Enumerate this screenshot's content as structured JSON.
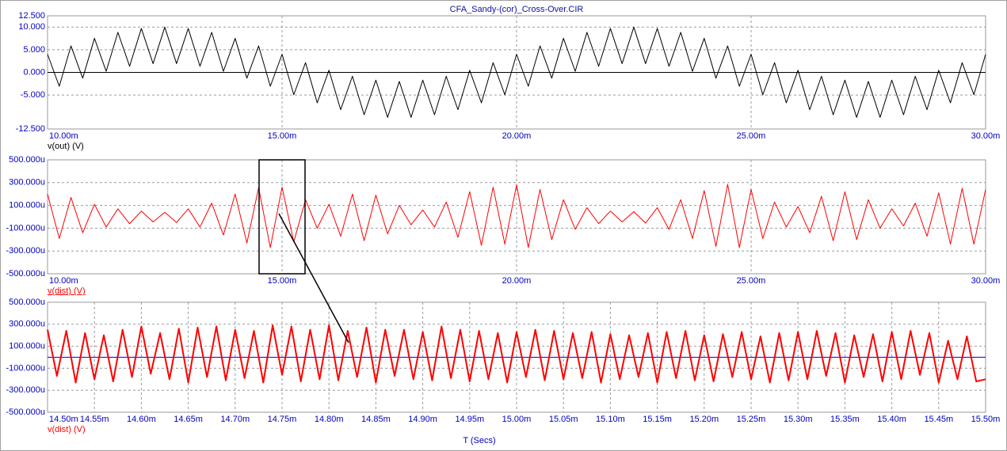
{
  "chart_data": [
    {
      "type": "line",
      "title": "CFA_Sandy-(cor)_Cross-Over.CIR",
      "grid": true,
      "zero_line_color": "#000000",
      "xlim": [
        0.01,
        0.03
      ],
      "xticks": [
        {
          "value": 0.01,
          "label": "10.00m"
        },
        {
          "value": 0.015,
          "label": "15.00m"
        },
        {
          "value": 0.02,
          "label": "20.00m"
        },
        {
          "value": 0.025,
          "label": "25.00m"
        },
        {
          "value": 0.03,
          "label": "30.00m"
        }
      ],
      "ylim": [
        -12.5,
        12.5
      ],
      "yticks": [
        {
          "value": 12.5,
          "label": "12.500"
        },
        {
          "value": 10,
          "label": "10.000"
        },
        {
          "value": 5,
          "label": "5.000"
        },
        {
          "value": 0,
          "label": "0.000"
        },
        {
          "value": -5,
          "label": "-5.000"
        },
        {
          "value": -12.5,
          "label": "-12.500"
        }
      ],
      "x": [
        0.01,
        0.01025,
        0.0105,
        0.01075,
        0.011,
        0.01125,
        0.0115,
        0.01175,
        0.012,
        0.01225,
        0.0125,
        0.01275,
        0.013,
        0.01325,
        0.0135,
        0.01375,
        0.014,
        0.01425,
        0.0145,
        0.01475,
        0.015,
        0.01525,
        0.0155,
        0.01575,
        0.016,
        0.01625,
        0.0165,
        0.01675,
        0.017,
        0.01725,
        0.0175,
        0.01775,
        0.018,
        0.01825,
        0.0185,
        0.01875,
        0.019,
        0.01925,
        0.0195,
        0.01975,
        0.02,
        0.02025,
        0.0205,
        0.02075,
        0.021,
        0.02125,
        0.0215,
        0.02175,
        0.022,
        0.02225,
        0.0225,
        0.02275,
        0.023,
        0.02325,
        0.0235,
        0.02375,
        0.024,
        0.02425,
        0.0245,
        0.02475,
        0.025,
        0.02525,
        0.0255,
        0.02575,
        0.026,
        0.02625,
        0.0265,
        0.02675,
        0.027,
        0.02725,
        0.0275,
        0.02775,
        0.028,
        0.02825,
        0.0285,
        0.02875,
        0.029,
        0.02925,
        0.0295,
        0.02975,
        0.03
      ],
      "series": [
        {
          "name": "v(out) (V)",
          "color": "#000000",
          "values": [
            4,
            -3.06,
            5.85,
            -1.28,
            7.53,
            0.24,
            8.85,
            1.35,
            9.71,
            1.93,
            10,
            1.93,
            9.71,
            1.35,
            8.85,
            0.24,
            7.53,
            -1.28,
            5.85,
            -3.06,
            4,
            -4.94,
            2.15,
            -6.72,
            0.47,
            -8.24,
            -0.85,
            -9.35,
            -1.71,
            -9.93,
            -2,
            -9.93,
            -1.71,
            -9.35,
            -0.85,
            -8.24,
            0.47,
            -6.72,
            2.15,
            -4.94,
            4,
            -3.06,
            5.85,
            -1.28,
            7.53,
            0.24,
            8.85,
            1.35,
            9.71,
            1.93,
            10,
            1.93,
            9.71,
            1.35,
            8.85,
            0.24,
            7.53,
            -1.28,
            5.85,
            -3.06,
            4,
            -4.94,
            2.15,
            -6.72,
            0.47,
            -8.24,
            -0.85,
            -9.35,
            -1.71,
            -9.93,
            -2,
            -9.93,
            -1.71,
            -9.35,
            -0.85,
            -8.24,
            0.47,
            -6.72,
            2.15,
            -4.94,
            4
          ]
        }
      ]
    },
    {
      "type": "line",
      "grid": true,
      "underline_legend": true,
      "xlim": [
        0.01,
        0.03
      ],
      "xticks": [
        {
          "value": 0.01,
          "label": "10.00m"
        },
        {
          "value": 0.015,
          "label": "15.00m"
        },
        {
          "value": 0.02,
          "label": "20.00m"
        },
        {
          "value": 0.025,
          "label": "25.00m"
        },
        {
          "value": 0.03,
          "label": "30.00m"
        }
      ],
      "ylim": [
        -0.0005,
        0.0005
      ],
      "yticks": [
        {
          "value": 0.0005,
          "label": "500.000u"
        },
        {
          "value": 0.0003,
          "label": "300.000u"
        },
        {
          "value": 0.0001,
          "label": "100.000u"
        },
        {
          "value": -0.0001,
          "label": "-100.000u"
        },
        {
          "value": -0.0003,
          "label": "-300.000u"
        },
        {
          "value": -0.0005,
          "label": "-500.000u"
        }
      ],
      "x": [
        0.01,
        0.01025,
        0.0105,
        0.01075,
        0.011,
        0.01125,
        0.0115,
        0.01175,
        0.012,
        0.01225,
        0.0125,
        0.01275,
        0.013,
        0.01325,
        0.0135,
        0.01375,
        0.014,
        0.01425,
        0.0145,
        0.01475,
        0.015,
        0.01525,
        0.0155,
        0.01575,
        0.016,
        0.01625,
        0.0165,
        0.01675,
        0.017,
        0.01725,
        0.0175,
        0.01775,
        0.018,
        0.01825,
        0.0185,
        0.01875,
        0.019,
        0.01925,
        0.0195,
        0.01975,
        0.02,
        0.02025,
        0.0205,
        0.02075,
        0.021,
        0.02125,
        0.0215,
        0.02175,
        0.022,
        0.02225,
        0.0225,
        0.02275,
        0.023,
        0.02325,
        0.0235,
        0.02375,
        0.024,
        0.02425,
        0.0245,
        0.02475,
        0.025,
        0.02525,
        0.0255,
        0.02575,
        0.026,
        0.02625,
        0.0265,
        0.02675,
        0.027,
        0.02725,
        0.0275,
        0.02775,
        0.028,
        0.02825,
        0.0285,
        0.02875,
        0.029,
        0.02925,
        0.0295,
        0.02975,
        0.03
      ],
      "series": [
        {
          "name": "v(dist) (V)",
          "color": "#ff0000",
          "values": [
            0.0002,
            -0.00019,
            0.00017,
            -0.00014,
            0.00011,
            -9e-05,
            7e-05,
            -6e-05,
            5e-05,
            -4.5e-05,
            4e-05,
            -5e-05,
            7e-05,
            -9e-05,
            0.00012,
            -0.00016,
            0.0002,
            -0.00023,
            0.000255,
            -0.00027,
            0.00026,
            -0.00022,
            0.00015,
            -0.0001,
            0.00011,
            -0.00017,
            0.0002,
            -0.00021,
            0.00019,
            -0.00015,
            0.0001,
            -7e-05,
            6e-05,
            -9e-05,
            0.00013,
            -0.00018,
            0.00022,
            -0.00025,
            0.00026,
            -0.00024,
            0.00028,
            -0.00027,
            0.00024,
            -0.0002,
            0.00015,
            -0.00011,
            8e-05,
            -6e-05,
            5e-05,
            -4.5e-05,
            4.5e-05,
            -5.5e-05,
            8e-05,
            -0.00011,
            0.00015,
            -0.00019,
            0.00023,
            -0.00026,
            0.000285,
            -0.00027,
            0.00024,
            -0.00019,
            0.00013,
            -9e-05,
            9e-05,
            -0.00014,
            0.00018,
            -0.00021,
            0.00022,
            -0.0002,
            0.00015,
            -0.0001,
            7e-05,
            -8e-05,
            0.00012,
            -0.00017,
            0.00021,
            -0.00024,
            0.00025,
            -0.00024,
            0.00024
          ]
        }
      ]
    },
    {
      "type": "line",
      "grid": true,
      "zero_line_color": "#0000ff",
      "xlabel": "T (Secs)",
      "xlim": [
        0.0145,
        0.0155
      ],
      "xticks": [
        {
          "value": 0.0145,
          "label": "14.50m"
        },
        {
          "value": 0.01455,
          "label": "14.55m"
        },
        {
          "value": 0.0146,
          "label": "14.60m"
        },
        {
          "value": 0.01465,
          "label": "14.65m"
        },
        {
          "value": 0.0147,
          "label": "14.70m"
        },
        {
          "value": 0.01475,
          "label": "14.75m"
        },
        {
          "value": 0.0148,
          "label": "14.80m"
        },
        {
          "value": 0.01485,
          "label": "14.85m"
        },
        {
          "value": 0.0149,
          "label": "14.90m"
        },
        {
          "value": 0.01495,
          "label": "14.95m"
        },
        {
          "value": 0.015,
          "label": "15.00m"
        },
        {
          "value": 0.01505,
          "label": "15.05m"
        },
        {
          "value": 0.0151,
          "label": "15.10m"
        },
        {
          "value": 0.01515,
          "label": "15.15m"
        },
        {
          "value": 0.0152,
          "label": "15.20m"
        },
        {
          "value": 0.01525,
          "label": "15.25m"
        },
        {
          "value": 0.0153,
          "label": "15.30m"
        },
        {
          "value": 0.01535,
          "label": "15.35m"
        },
        {
          "value": 0.0154,
          "label": "15.40m"
        },
        {
          "value": 0.01545,
          "label": "15.45m"
        },
        {
          "value": 0.0155,
          "label": "15.50m"
        }
      ],
      "ylim": [
        -0.0005,
        0.0005
      ],
      "yticks": [
        {
          "value": 0.0005,
          "label": "500.000u"
        },
        {
          "value": 0.0003,
          "label": "300.000u"
        },
        {
          "value": 0.0001,
          "label": "100.000u"
        },
        {
          "value": -0.0001,
          "label": "-100.000u"
        },
        {
          "value": -0.0003,
          "label": "-300.000u"
        },
        {
          "value": -0.0005,
          "label": "-500.000u"
        }
      ],
      "x": [
        0.0145,
        0.01451,
        0.01452,
        0.01453,
        0.01454,
        0.01455,
        0.01456,
        0.01457,
        0.01458,
        0.01459,
        0.0146,
        0.01461,
        0.01462,
        0.01463,
        0.01464,
        0.01465,
        0.01466,
        0.01467,
        0.01468,
        0.01469,
        0.0147,
        0.01471,
        0.01472,
        0.01473,
        0.01474,
        0.01475,
        0.01476,
        0.01477,
        0.01478,
        0.01479,
        0.0148,
        0.01481,
        0.01482,
        0.01483,
        0.01484,
        0.01485,
        0.01486,
        0.01487,
        0.01488,
        0.01489,
        0.0149,
        0.01491,
        0.01492,
        0.01493,
        0.01494,
        0.01495,
        0.01496,
        0.01497,
        0.01498,
        0.01499,
        0.015,
        0.01501,
        0.01502,
        0.01503,
        0.01504,
        0.01505,
        0.01506,
        0.01507,
        0.01508,
        0.01509,
        0.0151,
        0.01511,
        0.01512,
        0.01513,
        0.01514,
        0.01515,
        0.01516,
        0.01517,
        0.01518,
        0.01519,
        0.0152,
        0.01521,
        0.01522,
        0.01523,
        0.01524,
        0.01525,
        0.01526,
        0.01527,
        0.01528,
        0.01529,
        0.0153,
        0.01531,
        0.01532,
        0.01533,
        0.01534,
        0.01535,
        0.01536,
        0.01537,
        0.01538,
        0.01539,
        0.0154,
        0.01541,
        0.01542,
        0.01543,
        0.01544,
        0.01545,
        0.01546,
        0.01547,
        0.01548,
        0.01549,
        0.0155
      ],
      "series": [
        {
          "name": "v(dist) (V)",
          "color": "#ff0000",
          "values": [
            0.00025,
            -0.00017,
            0.00024,
            -0.00023,
            0.00022,
            -0.0002,
            0.0002,
            -0.00022,
            0.00025,
            -0.00018,
            0.00028,
            -0.00015,
            0.00022,
            -0.0002,
            0.00026,
            -0.00023,
            0.00027,
            -0.00018,
            0.00028,
            -0.00021,
            0.00025,
            -0.00019,
            0.00024,
            -0.00023,
            0.00029,
            -0.00016,
            0.00028,
            -0.00022,
            0.00025,
            -0.0002,
            0.00029,
            -0.00021,
            0.00024,
            -0.00018,
            0.00027,
            -0.00023,
            0.00025,
            -0.00017,
            0.00025,
            -0.0002,
            0.00023,
            -0.00021,
            0.00028,
            -0.00019,
            0.00025,
            -0.00022,
            0.00024,
            -0.0002,
            0.00022,
            -0.00023,
            0.00023,
            -0.00018,
            0.00025,
            -0.00021,
            0.00024,
            -0.0002,
            0.00022,
            -0.00019,
            0.00023,
            -0.00023,
            0.00021,
            -0.0002,
            0.0002,
            -0.00018,
            0.00022,
            -0.00023,
            0.00023,
            -0.00019,
            0.00024,
            -0.00021,
            0.0002,
            -0.00022,
            0.00021,
            -0.00018,
            0.00023,
            -0.0002,
            0.00019,
            -0.00023,
            0.00022,
            -0.00021,
            0.00023,
            -0.0002,
            0.00024,
            -0.00017,
            0.00022,
            -0.00023,
            0.0002,
            -0.00018,
            0.00021,
            -0.00022,
            0.00023,
            -0.0002,
            0.00024,
            -0.00016,
            0.00022,
            -0.00023,
            0.00015,
            -0.0002,
            0.00019,
            -0.00022,
            -0.0002
          ]
        }
      ]
    }
  ]
}
